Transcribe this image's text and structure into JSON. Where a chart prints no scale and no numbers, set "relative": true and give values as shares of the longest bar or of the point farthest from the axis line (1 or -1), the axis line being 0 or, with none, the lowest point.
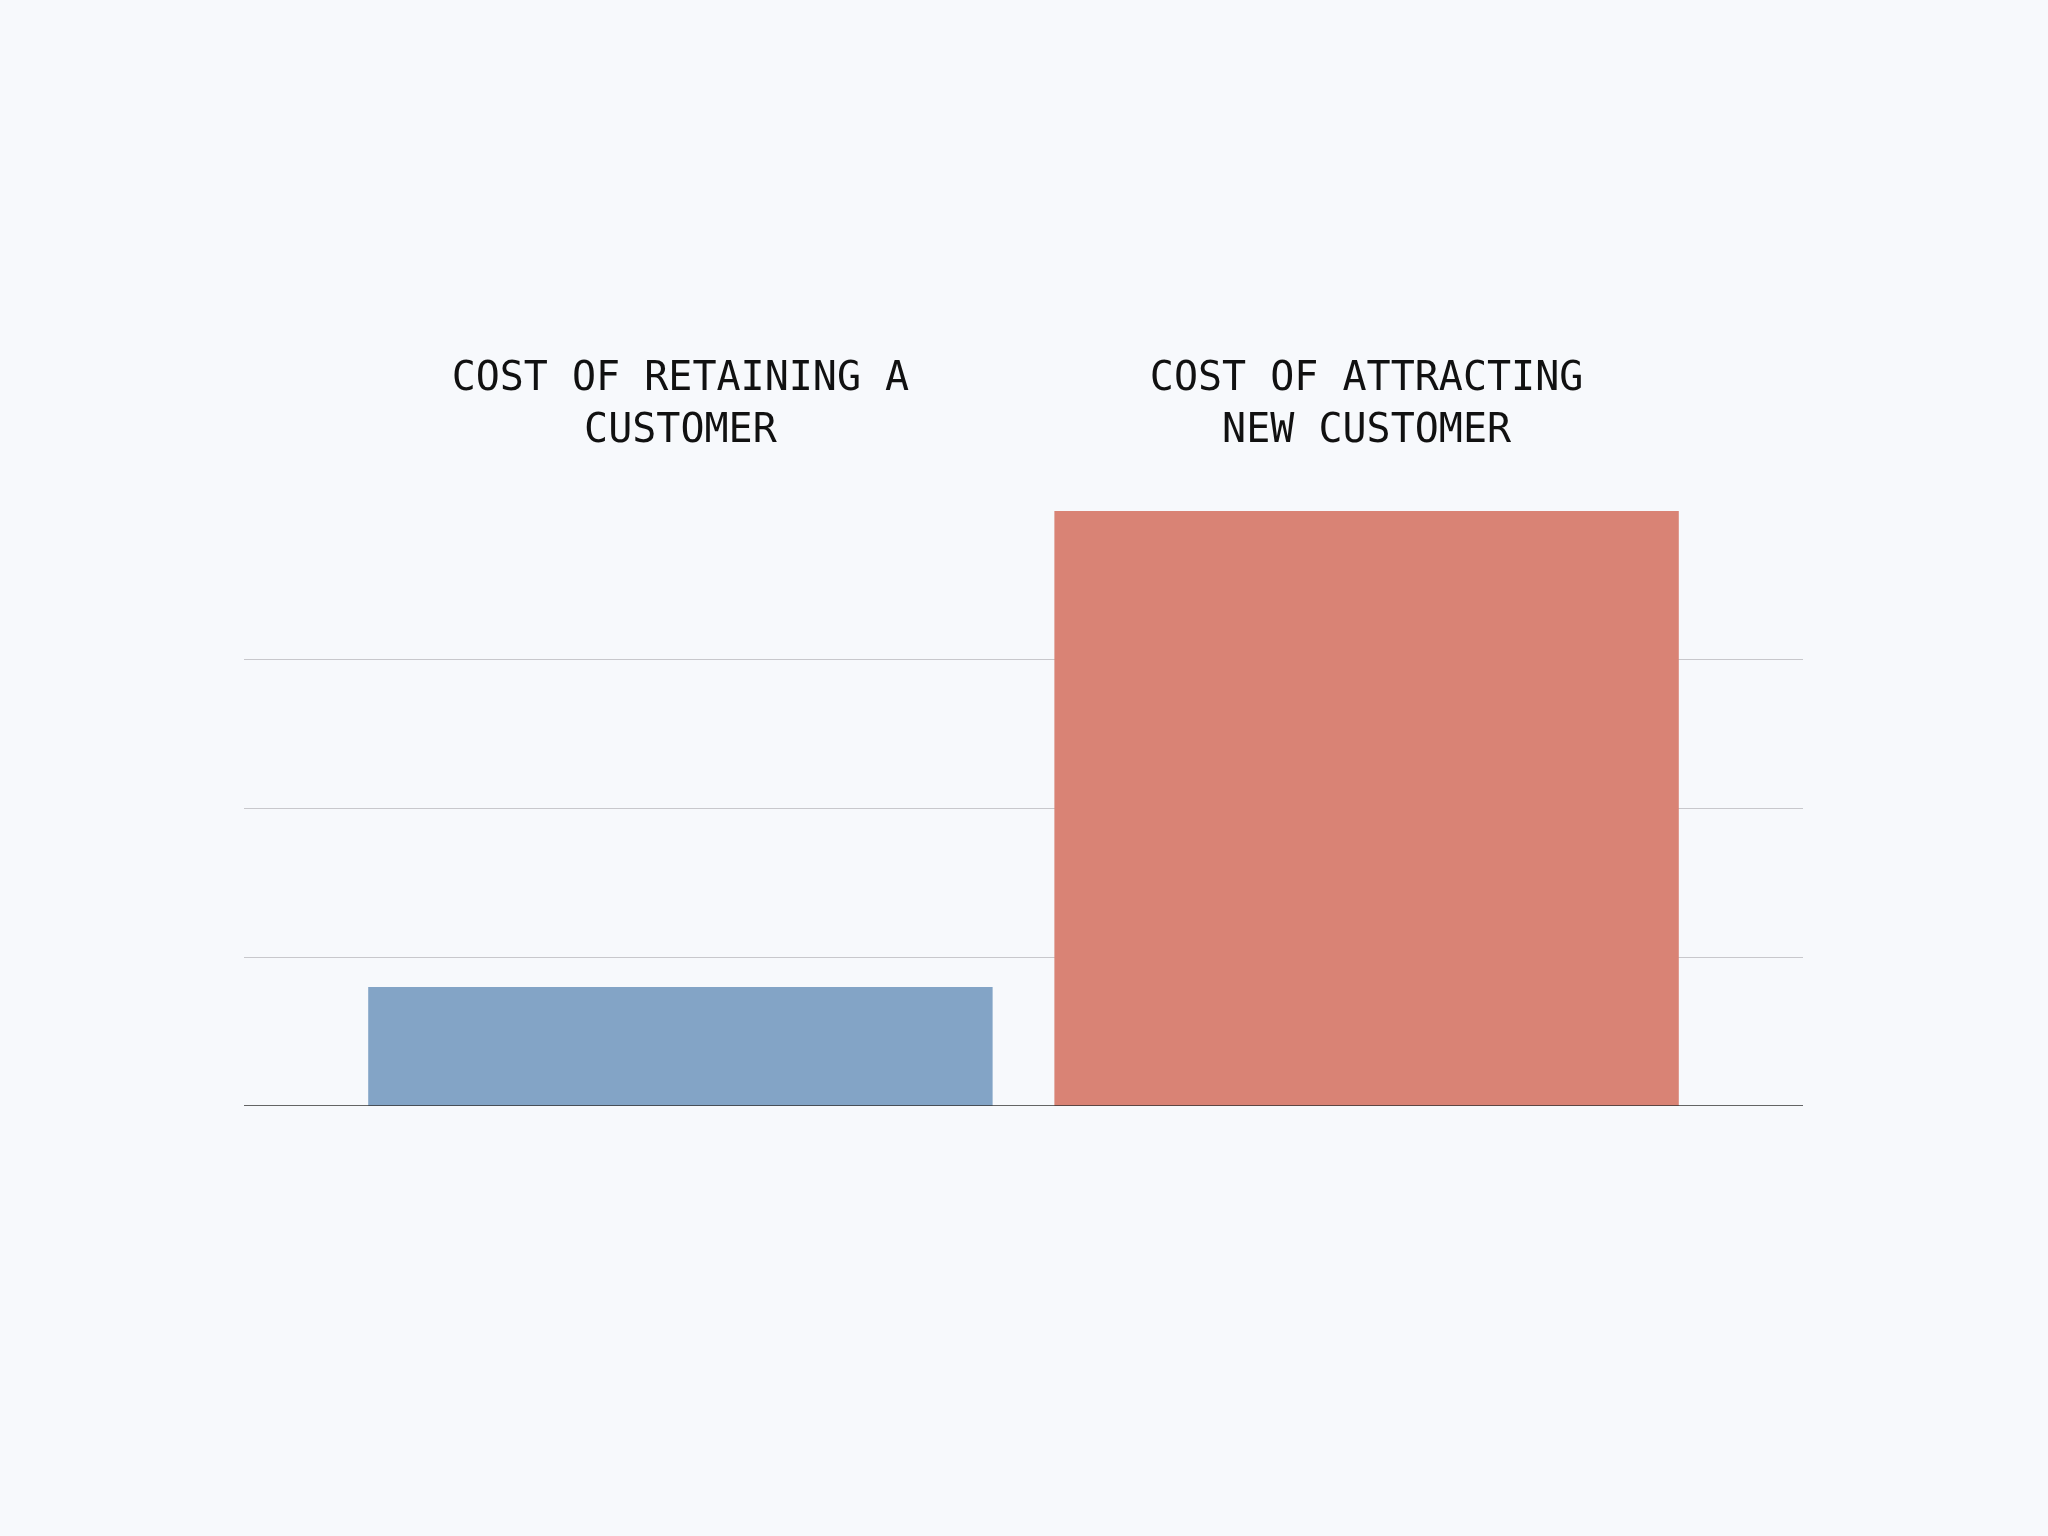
{
  "chart_data": {
    "type": "bar",
    "relative": true,
    "categories": [
      "COST OF RETAINING A CUSTOMER",
      "COST OF ATTRACTING NEW CUSTOMER"
    ],
    "values": [
      0.2,
      1
    ],
    "colors": [
      "#83a4c6",
      "#d98375"
    ],
    "grid": "y"
  }
}
